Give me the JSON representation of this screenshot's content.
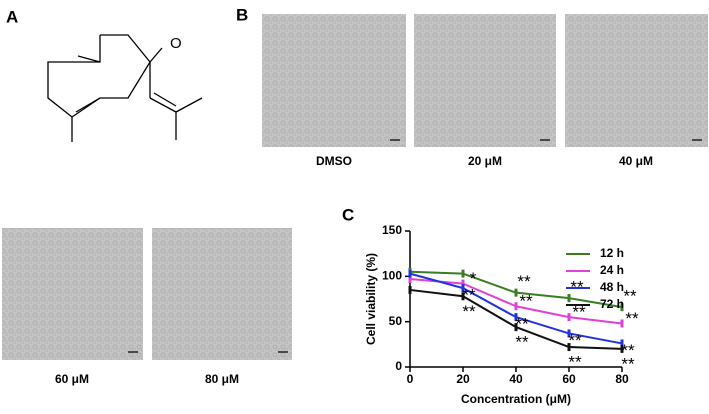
{
  "panel_labels": [
    "A",
    "B",
    "C"
  ],
  "molecule": {
    "atom_label": "O"
  },
  "images": {
    "captions": [
      "DMSO",
      "20 μM",
      "40 μM",
      "60 μM",
      "80 μM"
    ]
  },
  "chart_data": {
    "type": "line",
    "x_label": "Concentration  (μM)",
    "y_label": "Cell viability (%)",
    "x": [
      0,
      20,
      40,
      60,
      80
    ],
    "xlim": [
      0,
      80
    ],
    "xticks": [
      0,
      20,
      40,
      60,
      80
    ],
    "ylim": [
      0,
      150
    ],
    "yticks": [
      0,
      50,
      100,
      150
    ],
    "legend": "top-right",
    "series": [
      {
        "name": "12 h",
        "color": "#3a7d22",
        "values": [
          105,
          103,
          82,
          76,
          66
        ],
        "significance": [
          null,
          null,
          "**",
          "**",
          "**"
        ]
      },
      {
        "name": "24 h",
        "color": "#e040d8",
        "values": [
          97,
          92,
          67,
          55,
          48
        ],
        "significance": [
          null,
          "*",
          "**",
          "**",
          "**"
        ]
      },
      {
        "name": "48 h",
        "color": "#2233dd",
        "values": [
          103,
          87,
          55,
          37,
          26
        ],
        "significance": [
          null,
          "**",
          "**",
          "**",
          "**"
        ]
      },
      {
        "name": "72 h",
        "color": "#111111",
        "values": [
          85,
          78,
          44,
          22,
          20
        ],
        "significance": [
          null,
          "**",
          "**",
          "**",
          "**"
        ]
      }
    ]
  }
}
